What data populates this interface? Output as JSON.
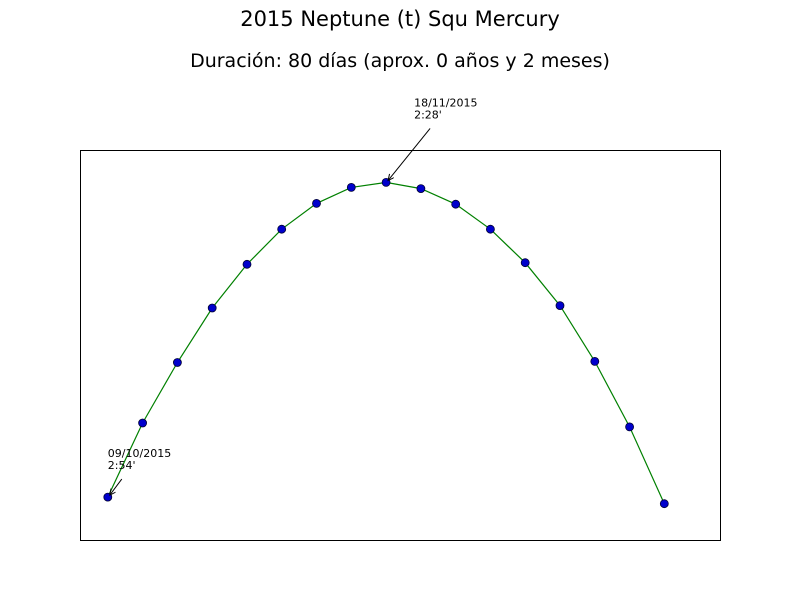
{
  "chart_data": {
    "type": "line",
    "title": "2015 Neptune (t) Squ Mercury",
    "subtitle": "Duración: 80 días (aprox. 0 años y 2 meses)",
    "xlabel": "",
    "ylabel": "",
    "grid": false,
    "axes_ticks_shown": false,
    "series": [
      {
        "x": [
          0,
          5,
          10,
          15,
          20,
          25,
          30,
          35,
          40,
          45,
          50,
          55,
          60,
          65,
          70,
          75,
          80
        ],
        "values": [
          0.11,
          0.3,
          0.455,
          0.595,
          0.707,
          0.797,
          0.863,
          0.904,
          0.917,
          0.901,
          0.861,
          0.797,
          0.711,
          0.601,
          0.458,
          0.29,
          0.093
        ]
      }
    ],
    "xlim": [
      -4,
      88
    ],
    "ylim": [
      0,
      1
    ],
    "line_color": "#008000",
    "marker_face_color": "#0000cc",
    "marker_edge_color": "#000033",
    "annotations": [
      {
        "date": "09/10/2015",
        "time": "2:54'",
        "point_index": 0
      },
      {
        "date": "18/11/2015",
        "time": "2:28'",
        "point_index": 8
      }
    ]
  }
}
